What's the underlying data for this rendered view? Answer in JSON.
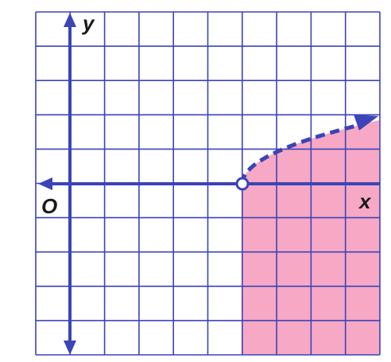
{
  "labels": {
    "y_axis": "y",
    "x_axis": "x",
    "origin": "O"
  }
}
